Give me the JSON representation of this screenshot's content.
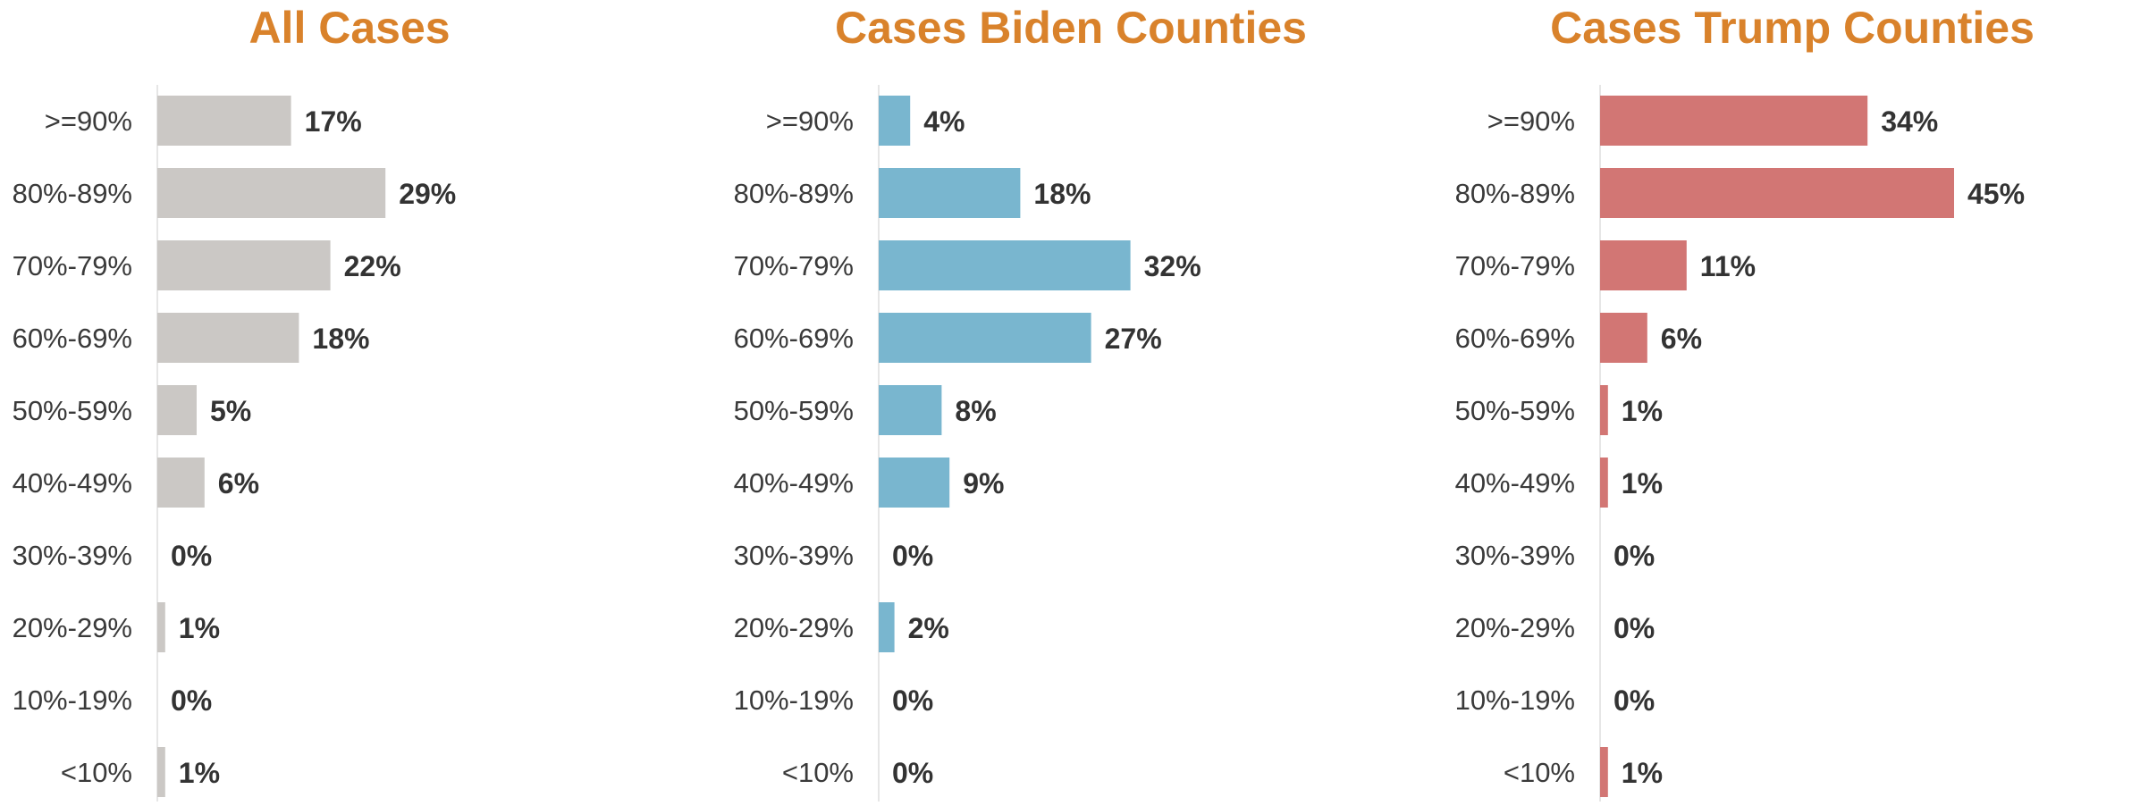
{
  "title_color": "#D9822B",
  "axis_color": "#e6e6e6",
  "label_color": "#3a3a3a",
  "value_label_color": "#333333",
  "chart_data": [
    {
      "type": "bar",
      "orientation": "horizontal",
      "title": "All Cases",
      "categories": [
        ">=90%",
        "80%-89%",
        "70%-79%",
        "60%-69%",
        "50%-59%",
        "40%-49%",
        "30%-39%",
        "20%-29%",
        "10%-19%",
        "<10%"
      ],
      "values": [
        17,
        29,
        22,
        18,
        5,
        6,
        0,
        1,
        0,
        1
      ],
      "value_labels": [
        "17%",
        "29%",
        "22%",
        "18%",
        "5%",
        "6%",
        "0%",
        "1%",
        "0%",
        "1%"
      ],
      "color": "#CBC8C5",
      "grid": false
    },
    {
      "type": "bar",
      "orientation": "horizontal",
      "title": "Cases Biden Counties",
      "categories": [
        ">=90%",
        "80%-89%",
        "70%-79%",
        "60%-69%",
        "50%-59%",
        "40%-49%",
        "30%-39%",
        "20%-29%",
        "10%-19%",
        "<10%"
      ],
      "values": [
        4,
        18,
        32,
        27,
        8,
        9,
        0,
        2,
        0,
        0
      ],
      "value_labels": [
        "4%",
        "18%",
        "32%",
        "27%",
        "8%",
        "9%",
        "0%",
        "2%",
        "0%",
        "0%"
      ],
      "color": "#79B6CF",
      "grid": false
    },
    {
      "type": "bar",
      "orientation": "horizontal",
      "title": "Cases Trump Counties",
      "categories": [
        ">=90%",
        "80%-89%",
        "70%-79%",
        "60%-69%",
        "50%-59%",
        "40%-49%",
        "30%-39%",
        "20%-29%",
        "10%-19%",
        "<10%"
      ],
      "values": [
        34,
        45,
        11,
        6,
        1,
        1,
        0,
        0,
        0,
        1
      ],
      "value_labels": [
        "34%",
        "45%",
        "11%",
        "6%",
        "1%",
        "1%",
        "0%",
        "0%",
        "0%",
        "1%"
      ],
      "color": "#D27674",
      "grid": false
    }
  ]
}
